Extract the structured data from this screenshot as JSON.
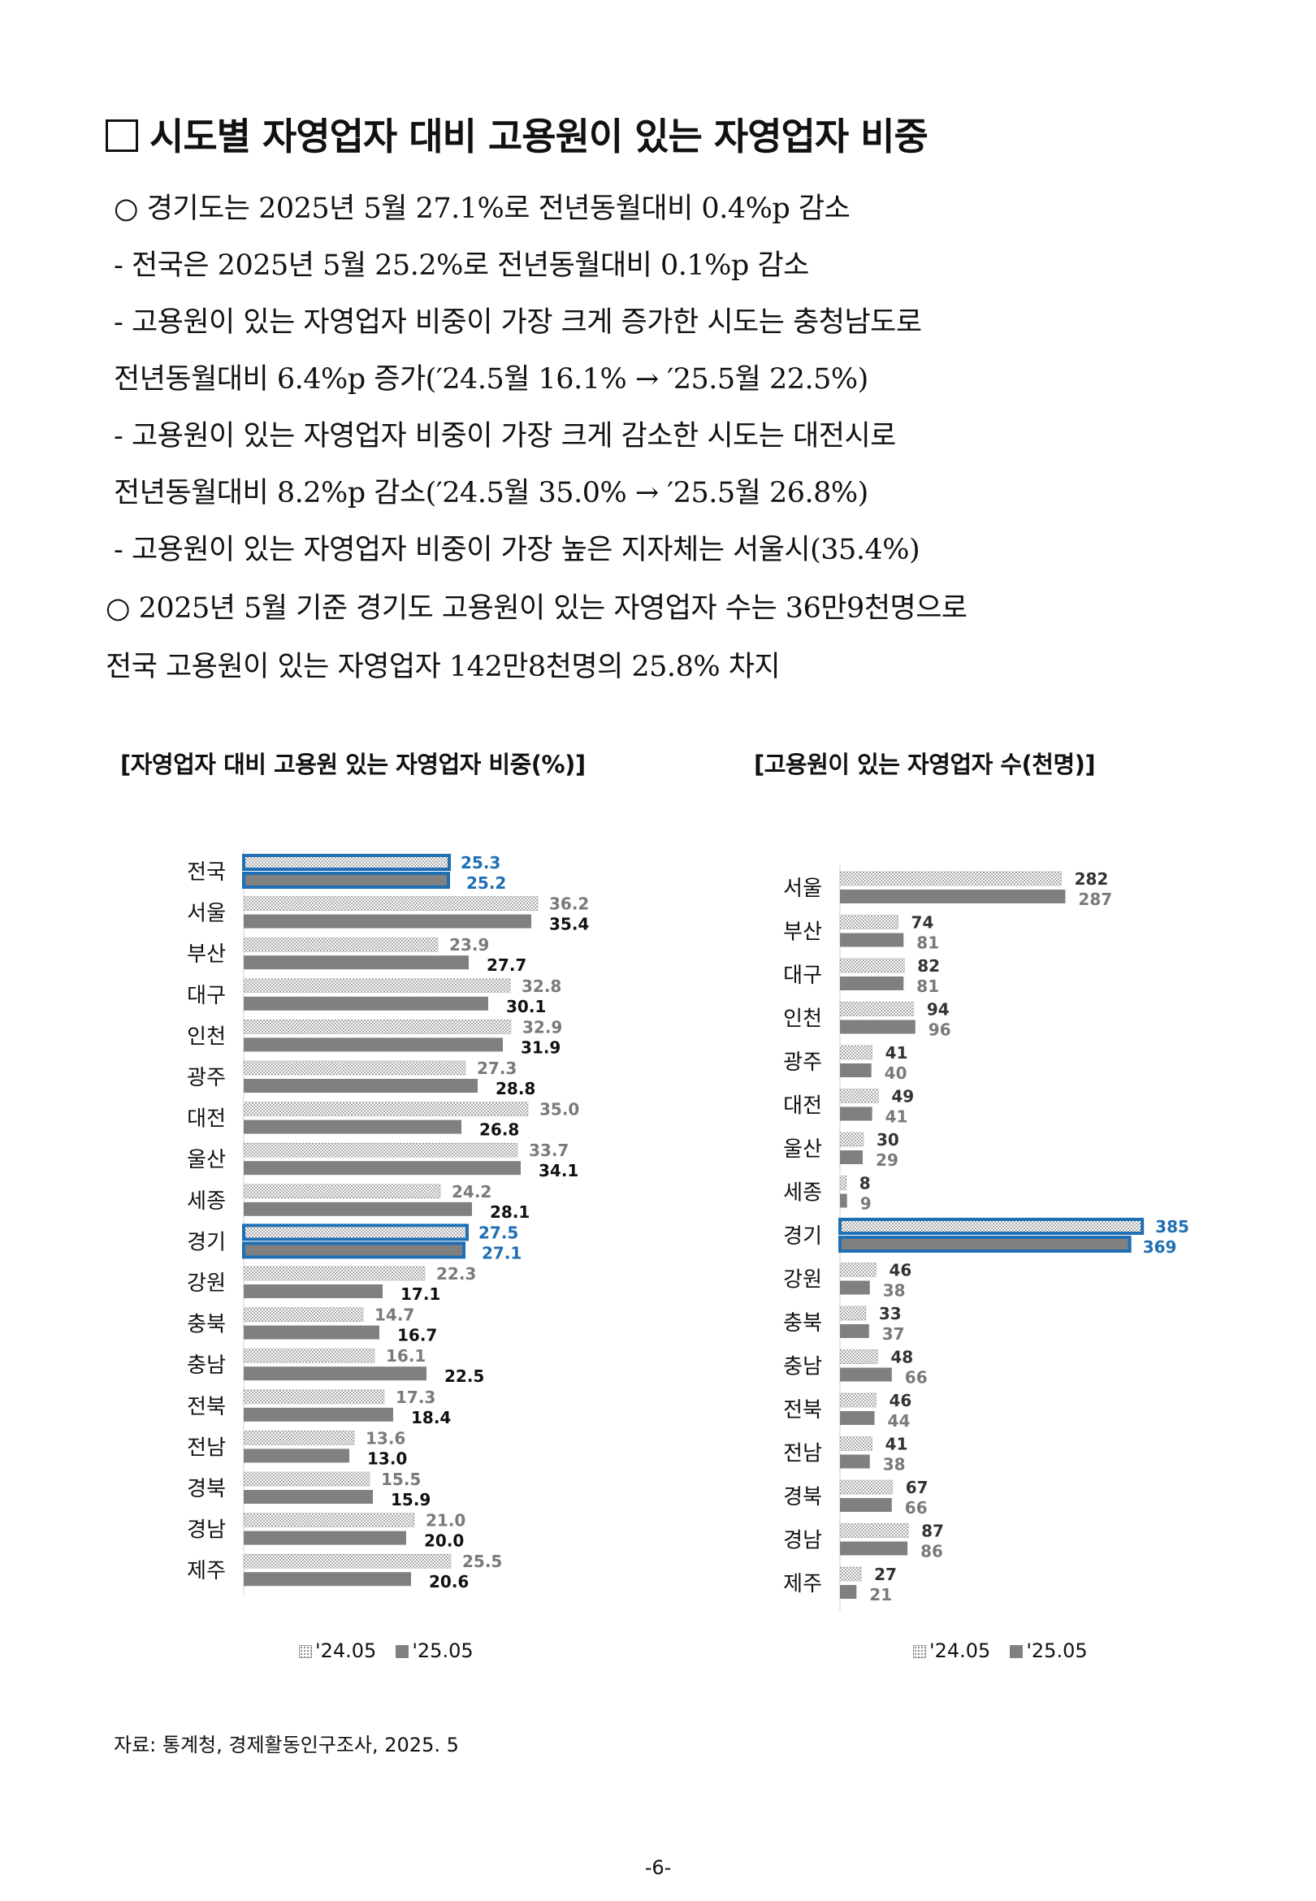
{
  "heading": "시도별 자영업자 대비 고용원이 있는 자영업자 비중",
  "bullets": [
    "○  경기도는 2025년 5월 27.1%로 전년동월대비 0.4%p 감소",
    " - 전국은 2025년 5월 25.2%로 전년동월대비 0.1%p 감소",
    " - 고용원이 있는 자영업자 비중이 가장 크게 증가한 시도는 충청남도로",
    "   전년동월대비 6.4%p 증가(′24.5월 16.1% → ′25.5월 22.5%)",
    " - 고용원이 있는 자영업자 비중이 가장 크게 감소한 시도는 대전시로",
    "   전년동월대비 8.2%p 감소(′24.5월 35.0% → ′25.5월 26.8%)",
    " - 고용원이 있는 자영업자 비중이 가장 높은 지자체는 서울시(35.4%)",
    "○  2025년 5월 기준 경기도 고용원이 있는 자영업자 수는 36만9천명으로",
    "     전국 고용원이 있는 자영업자 142만8천명의 25.8% 차지"
  ],
  "colors": {
    "highlight": "#1f6fb4",
    "bar_2025": "#808080",
    "dot": "#6e6e6e",
    "text": "#111111"
  },
  "chart_data": [
    {
      "type": "bar",
      "orientation": "horizontal",
      "title": "[자영업자 대비 고용원 있는 자영업자  비중(%)]",
      "categories": [
        "전국",
        "서울",
        "부산",
        "대구",
        "인천",
        "광주",
        "대전",
        "울산",
        "세종",
        "경기",
        "강원",
        "충북",
        "충남",
        "전북",
        "전남",
        "경북",
        "경남",
        "제주"
      ],
      "series": [
        {
          "name": "'24.05",
          "values": [
            25.3,
            36.2,
            23.9,
            32.8,
            32.9,
            27.3,
            35.0,
            33.7,
            24.2,
            27.5,
            22.3,
            14.7,
            16.1,
            17.3,
            13.6,
            15.5,
            21.0,
            25.5
          ]
        },
        {
          "name": "'25.05",
          "values": [
            25.2,
            35.4,
            27.7,
            30.1,
            31.9,
            28.8,
            26.8,
            34.1,
            28.1,
            27.1,
            17.1,
            16.7,
            22.5,
            18.4,
            13.0,
            15.9,
            20.0,
            20.6
          ]
        }
      ],
      "highlight": [
        "전국",
        "경기"
      ],
      "xlim": [
        0,
        40
      ],
      "legend": "bottom"
    },
    {
      "type": "bar",
      "orientation": "horizontal",
      "title": "[고용원이 있는 자영업자 수(천명)]",
      "categories": [
        "서울",
        "부산",
        "대구",
        "인천",
        "광주",
        "대전",
        "울산",
        "세종",
        "경기",
        "강원",
        "충북",
        "충남",
        "전북",
        "전남",
        "경북",
        "경남",
        "제주"
      ],
      "series": [
        {
          "name": "'24.05",
          "values": [
            282,
            74,
            82,
            94,
            41,
            49,
            30,
            8,
            385,
            46,
            33,
            48,
            46,
            41,
            67,
            87,
            27
          ]
        },
        {
          "name": "'25.05",
          "values": [
            287,
            81,
            81,
            96,
            40,
            41,
            29,
            9,
            369,
            38,
            37,
            66,
            44,
            38,
            66,
            86,
            21
          ]
        }
      ],
      "highlight": [
        "경기"
      ],
      "xlim": [
        0,
        420
      ],
      "legend": "bottom"
    }
  ],
  "legend": {
    "label_2024": "'24.05",
    "label_2025": "'25.05"
  },
  "source": "자료: 통계청, 경제활동인구조사, 2025. 5",
  "page_number": "-6-"
}
